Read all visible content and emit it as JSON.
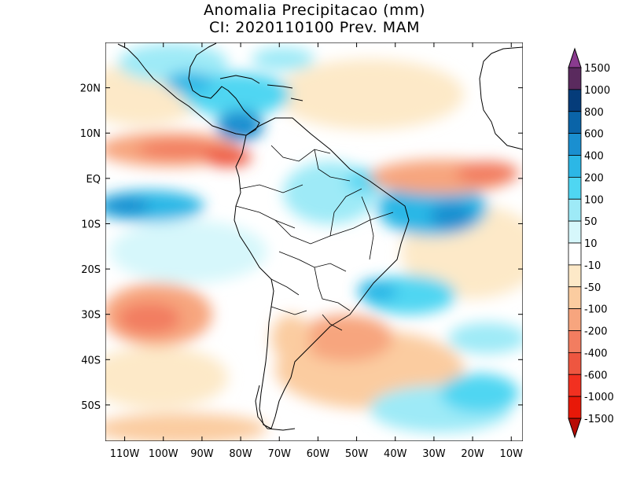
{
  "title": {
    "line1": "Anomalia Precipitacao (mm)",
    "line2": "CI: 2020110100 Prev. MAM"
  },
  "axes": {
    "lon_ticks": [
      "110W",
      "100W",
      "90W",
      "80W",
      "70W",
      "60W",
      "50W",
      "40W",
      "30W",
      "20W",
      "10W"
    ],
    "lat_ticks": [
      "20N",
      "10N",
      "EQ",
      "10S",
      "20S",
      "30S",
      "40S",
      "50S"
    ],
    "lon_range": [
      -115,
      -7
    ],
    "lat_range": [
      -58,
      30
    ]
  },
  "colorbar": {
    "labels": [
      "1500",
      "1000",
      "800",
      "600",
      "400",
      "200",
      "100",
      "50",
      "10",
      "-10",
      "-50",
      "-100",
      "-200",
      "-400",
      "-600",
      "-1000",
      "-1500"
    ],
    "colors": [
      "#8a3b8f",
      "#5a2a5e",
      "#053c7a",
      "#0a64a8",
      "#1a8fd0",
      "#2cb7e6",
      "#4fd6f2",
      "#9eeaf7",
      "#d6f7fb",
      "#ffffff",
      "#fde9c8",
      "#fbcca0",
      "#f7a57e",
      "#f27d60",
      "#ee5640",
      "#f23020",
      "#e81808",
      "#b80c05"
    ]
  },
  "chart_data": {
    "type": "heatmap",
    "title": "Anomalia Precipitacao (mm)",
    "subtitle": "CI: 2020110100 Prev. MAM",
    "xlabel": "",
    "ylabel": "",
    "xlim": [
      -115,
      -7
    ],
    "ylim": [
      -58,
      30
    ],
    "levels": [
      -1500,
      -1000,
      -600,
      -400,
      -200,
      -100,
      -50,
      -10,
      10,
      50,
      100,
      200,
      400,
      600,
      800,
      1000,
      1500
    ],
    "units": "mm",
    "anomaly_regions": [
      {
        "lon": -105,
        "lat": -7,
        "value": 450
      },
      {
        "lon": -85,
        "lat": 12,
        "value": 550
      },
      {
        "lon": -100,
        "lat": 22,
        "value": 250
      },
      {
        "lon": -60,
        "lat": -5,
        "value": 150
      },
      {
        "lon": -30,
        "lat": -6,
        "value": 400
      },
      {
        "lon": -40,
        "lat": -25,
        "value": 250
      },
      {
        "lon": -25,
        "lat": -45,
        "value": 120
      },
      {
        "lon": -100,
        "lat": 7,
        "value": -350
      },
      {
        "lon": -25,
        "lat": 0,
        "value": -350
      },
      {
        "lon": -100,
        "lat": -33,
        "value": -300
      },
      {
        "lon": -45,
        "lat": -36,
        "value": -250
      },
      {
        "lon": -63,
        "lat": -37,
        "value": -120
      }
    ]
  }
}
